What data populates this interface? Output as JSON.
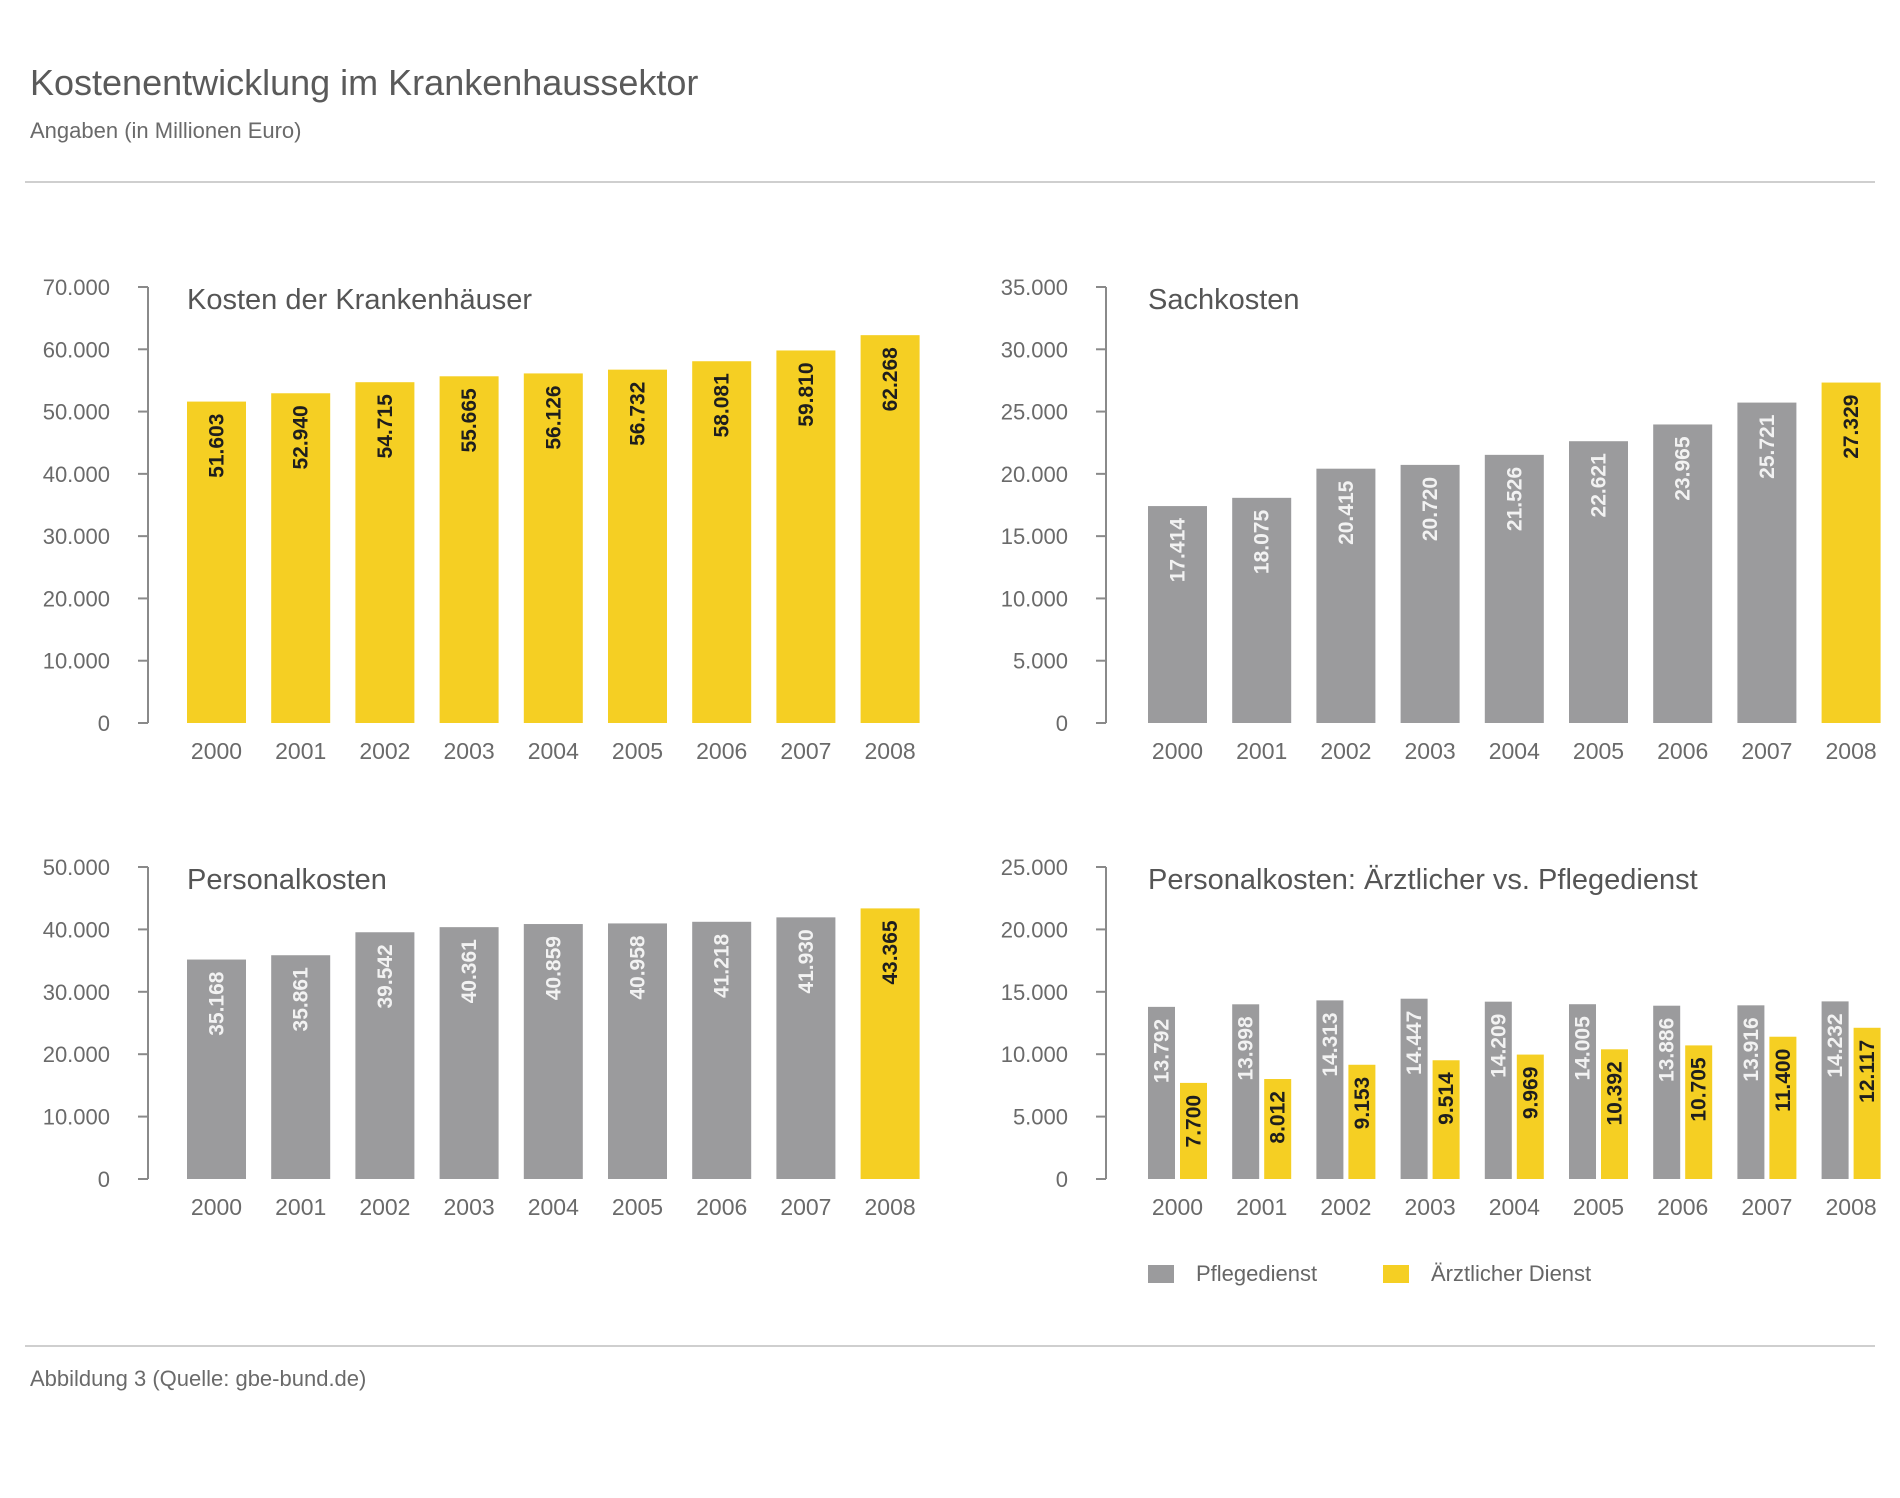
{
  "header": {
    "title": "Kostenentwicklung im Krankenhaussektor",
    "subtitle": "Angaben (in Millionen Euro)"
  },
  "footer": {
    "source": "Abbildung 3 (Quelle: gbe-bund.de)"
  },
  "colors": {
    "yellow": "#f5cf23",
    "gray": "#9b9b9d",
    "axis": "#8a8a8a",
    "label_dark": "#1e1e1e",
    "label_light": "#f2f2f2"
  },
  "chart_data": [
    {
      "type": "bar",
      "title": "Kosten der Krankenhäuser",
      "categories": [
        "2000",
        "2001",
        "2002",
        "2003",
        "2004",
        "2005",
        "2006",
        "2007",
        "2008"
      ],
      "series": [
        {
          "values": [
            51603,
            52940,
            54715,
            55665,
            56126,
            56732,
            58081,
            59810,
            62268
          ],
          "labels": [
            "51.603",
            "52.940",
            "54.715",
            "55.665",
            "56.126",
            "56.732",
            "58.081",
            "59.810",
            "62.268"
          ],
          "colors": [
            "yellow",
            "yellow",
            "yellow",
            "yellow",
            "yellow",
            "yellow",
            "yellow",
            "yellow",
            "yellow"
          ]
        }
      ],
      "ylim": [
        0,
        70000
      ],
      "yticks": [
        0,
        10000,
        20000,
        30000,
        40000,
        50000,
        60000,
        70000
      ],
      "yticklabels": [
        "0",
        "10.000",
        "20.000",
        "30.000",
        "40.000",
        "50.000",
        "60.000",
        "70.000"
      ]
    },
    {
      "type": "bar",
      "title": "Sachkosten",
      "categories": [
        "2000",
        "2001",
        "2002",
        "2003",
        "2004",
        "2005",
        "2006",
        "2007",
        "2008"
      ],
      "series": [
        {
          "values": [
            17414,
            18075,
            20415,
            20720,
            21526,
            22621,
            23965,
            25721,
            27329
          ],
          "labels": [
            "17.414",
            "18.075",
            "20.415",
            "20.720",
            "21.526",
            "22.621",
            "23.965",
            "25.721",
            "27.329"
          ],
          "colors": [
            "gray",
            "gray",
            "gray",
            "gray",
            "gray",
            "gray",
            "gray",
            "gray",
            "yellow"
          ]
        }
      ],
      "ylim": [
        0,
        35000
      ],
      "yticks": [
        0,
        5000,
        10000,
        15000,
        20000,
        25000,
        30000,
        35000
      ],
      "yticklabels": [
        "0",
        "5.000",
        "10.000",
        "15.000",
        "20.000",
        "25.000",
        "30.000",
        "35.000"
      ]
    },
    {
      "type": "bar",
      "title": "Personalkosten",
      "categories": [
        "2000",
        "2001",
        "2002",
        "2003",
        "2004",
        "2005",
        "2006",
        "2007",
        "2008"
      ],
      "series": [
        {
          "values": [
            35168,
            35861,
            39542,
            40361,
            40859,
            40958,
            41218,
            41930,
            43365
          ],
          "labels": [
            "35.168",
            "35.861",
            "39.542",
            "40.361",
            "40.859",
            "40.958",
            "41.218",
            "41.930",
            "43.365"
          ],
          "colors": [
            "gray",
            "gray",
            "gray",
            "gray",
            "gray",
            "gray",
            "gray",
            "gray",
            "yellow"
          ]
        }
      ],
      "ylim": [
        0,
        50000
      ],
      "yticks": [
        0,
        10000,
        20000,
        30000,
        40000,
        50000
      ],
      "yticklabels": [
        "0",
        "10.000",
        "20.000",
        "30.000",
        "40.000",
        "50.000"
      ]
    },
    {
      "type": "bar",
      "title": "Personalkosten: Ärztlicher vs. Pflegedienst",
      "categories": [
        "2000",
        "2001",
        "2002",
        "2003",
        "2004",
        "2005",
        "2006",
        "2007",
        "2008"
      ],
      "series": [
        {
          "name": "Pflegedienst",
          "color": "gray",
          "values": [
            13792,
            13998,
            14313,
            14447,
            14209,
            14005,
            13886,
            13916,
            14232
          ],
          "labels": [
            "13.792",
            "13.998",
            "14.313",
            "14.447",
            "14.209",
            "14.005",
            "13.886",
            "13.916",
            "14.232"
          ]
        },
        {
          "name": "Ärztlicher Dienst",
          "color": "yellow",
          "values": [
            7700,
            8012,
            9153,
            9514,
            9969,
            10392,
            10705,
            11400,
            12117
          ],
          "labels": [
            "7.700",
            "8.012",
            "9.153",
            "9.514",
            "9.969",
            "10.392",
            "10.705",
            "11.400",
            "12.117"
          ]
        }
      ],
      "ylim": [
        0,
        25000
      ],
      "yticks": [
        0,
        5000,
        10000,
        15000,
        20000,
        25000
      ],
      "yticklabels": [
        "0",
        "5.000",
        "10.000",
        "15.000",
        "20.000",
        "25.000"
      ],
      "legend": "bottom-left"
    }
  ]
}
